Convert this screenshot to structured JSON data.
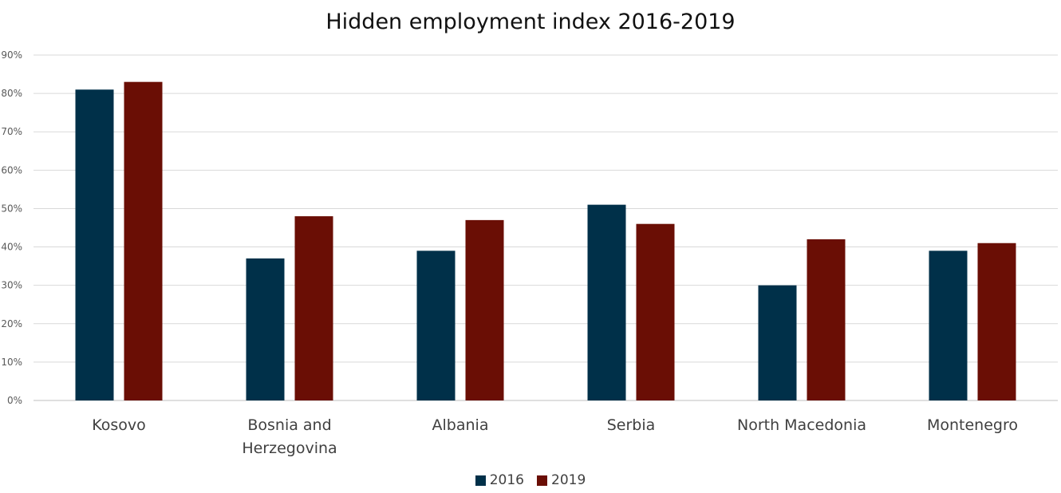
{
  "chart_data": {
    "type": "bar",
    "title": "Hidden employment index 2016-2019",
    "xlabel": "",
    "ylabel": "",
    "categories": [
      "Kosovo",
      "Bosnia and Herzegovina",
      "Albania",
      "Serbia",
      "North Macedonia",
      "Montenegro"
    ],
    "category_lines": [
      [
        "Kosovo"
      ],
      [
        "Bosnia and",
        "Herzegovina"
      ],
      [
        "Albania"
      ],
      [
        "Serbia"
      ],
      [
        "North Macedonia"
      ],
      [
        "Montenegro"
      ]
    ],
    "series": [
      {
        "name": "2016",
        "color": "#003049",
        "values": [
          81,
          37,
          39,
          51,
          30,
          39
        ]
      },
      {
        "name": "2019",
        "color": "#6a0e05",
        "values": [
          83,
          48,
          47,
          46,
          42,
          41
        ]
      }
    ],
    "ylim": [
      0,
      90
    ],
    "yticks": [
      0,
      10,
      20,
      30,
      40,
      50,
      60,
      70,
      80,
      90
    ],
    "ytick_labels": [
      "0%",
      "10%",
      "20%",
      "30%",
      "40%",
      "50%",
      "60%",
      "70%",
      "80%",
      "90%"
    ],
    "grid": true,
    "legend_position": "bottom"
  }
}
